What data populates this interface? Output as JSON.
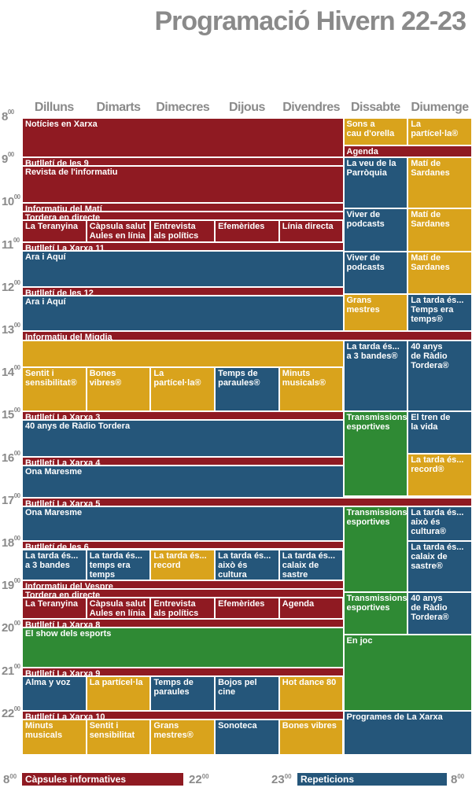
{
  "title": "Programació Hivern 22-23",
  "days": [
    "Dilluns",
    "Dimarts",
    "Dimecres",
    "Dijous",
    "Divendres",
    "Dissabte",
    "Diumenge"
  ],
  "hours": [
    "8",
    "9",
    "10",
    "11",
    "12",
    "13",
    "14",
    "15",
    "16",
    "17",
    "18",
    "19",
    "20",
    "21",
    "22"
  ],
  "hour_suffix": "00",
  "colors": {
    "red": "#8f1a22",
    "blue": "#25567a",
    "yellow": "#d9a31c",
    "green": "#2f8a34"
  },
  "blocks": [
    {
      "text": "Notícies en Xarxa",
      "c": "red",
      "d0": 0,
      "d1": 5,
      "s": 0,
      "e": 0.92
    },
    {
      "text": "Sons a\ncau d'orella",
      "c": "yel",
      "d0": 5,
      "d1": 6,
      "s": 0,
      "e": 0.65
    },
    {
      "text": "La partícel·la®",
      "c": "yel",
      "d0": 6,
      "d1": 7,
      "s": 0,
      "e": 0.65
    },
    {
      "text": "Agenda",
      "c": "red",
      "d0": 5,
      "d1": 7,
      "s": 0.65,
      "e": 0.92
    },
    {
      "text": "Butlletí de les 9",
      "c": "red",
      "d0": 0,
      "d1": 5,
      "s": 0.92,
      "e": 1.12
    },
    {
      "text": "Revista de l'informatiu",
      "c": "red",
      "d0": 0,
      "d1": 5,
      "s": 1.12,
      "e": 2.0
    },
    {
      "text": "La veu de la\nParròquia",
      "c": "blue",
      "d0": 5,
      "d1": 6,
      "s": 0.92,
      "e": 2.13
    },
    {
      "text": "Matí de\nSardanes",
      "c": "yel",
      "d0": 6,
      "d1": 7,
      "s": 0.92,
      "e": 2.13
    },
    {
      "text": "Informatiu del Matí",
      "c": "red",
      "d0": 0,
      "d1": 5,
      "s": 2.0,
      "e": 2.2
    },
    {
      "text": "Tordera en directe",
      "c": "red",
      "d0": 0,
      "d1": 5,
      "s": 2.2,
      "e": 2.4
    },
    {
      "text": "La Teranyina",
      "c": "red",
      "d0": 0,
      "d1": 1,
      "s": 2.4,
      "e": 2.92
    },
    {
      "text": "Càpsula salut\nAules en línia",
      "c": "red",
      "d0": 1,
      "d1": 2,
      "s": 2.4,
      "e": 2.92
    },
    {
      "text": "Entrevista\nals polítics",
      "c": "red",
      "d0": 2,
      "d1": 3,
      "s": 2.4,
      "e": 2.92
    },
    {
      "text": "Efemèrides",
      "c": "red",
      "d0": 3,
      "d1": 4,
      "s": 2.4,
      "e": 2.92
    },
    {
      "text": "Línia directa",
      "c": "red",
      "d0": 4,
      "d1": 5,
      "s": 2.4,
      "e": 2.92
    },
    {
      "text": "Viver de\npodcasts",
      "c": "blue",
      "d0": 5,
      "d1": 6,
      "s": 2.13,
      "e": 3.13
    },
    {
      "text": "Matí de\nSardanes",
      "c": "yel",
      "d0": 6,
      "d1": 7,
      "s": 2.13,
      "e": 3.13
    },
    {
      "text": "Butlletí La Xarxa 11",
      "c": "red",
      "d0": 0,
      "d1": 5,
      "s": 2.92,
      "e": 3.12
    },
    {
      "text": "Ara i Aquí",
      "c": "blue",
      "d0": 0,
      "d1": 5,
      "s": 3.12,
      "e": 3.97
    },
    {
      "text": "Viver de\npodcasts",
      "c": "blue",
      "d0": 5,
      "d1": 6,
      "s": 3.13,
      "e": 4.13
    },
    {
      "text": "Matí de\nSardanes",
      "c": "yel",
      "d0": 6,
      "d1": 7,
      "s": 3.13,
      "e": 4.13
    },
    {
      "text": "Butlletí de les 12",
      "c": "red",
      "d0": 0,
      "d1": 5,
      "s": 3.97,
      "e": 4.17
    },
    {
      "text": "Ara i Aquí",
      "c": "blue",
      "d0": 0,
      "d1": 5,
      "s": 4.17,
      "e": 5.0
    },
    {
      "text": "Grans\nmestres",
      "c": "yel",
      "d0": 5,
      "d1": 6,
      "s": 4.13,
      "e": 5.0
    },
    {
      "text": "La tarda és...\nTemps era\ntemps®",
      "c": "blue",
      "d0": 6,
      "d1": 7,
      "s": 4.13,
      "e": 5.0
    },
    {
      "text": "Informatiu del Migdia",
      "c": "red",
      "d0": 0,
      "d1": 7,
      "s": 5.0,
      "e": 5.22
    },
    {
      "text": "",
      "c": "yel",
      "d0": 0,
      "d1": 5,
      "s": 5.22,
      "e": 5.85
    },
    {
      "text": "Sentit i\nsensibilitat®",
      "c": "yel",
      "d0": 0,
      "d1": 1,
      "s": 5.85,
      "e": 6.88
    },
    {
      "text": "Bones vibres®",
      "c": "yel",
      "d0": 1,
      "d1": 2,
      "s": 5.85,
      "e": 6.88
    },
    {
      "text": "La partícel·la®",
      "c": "yel",
      "d0": 2,
      "d1": 3,
      "s": 5.85,
      "e": 6.88
    },
    {
      "text": "Temps de\nparaules®",
      "c": "blue",
      "d0": 3,
      "d1": 4,
      "s": 5.85,
      "e": 6.88
    },
    {
      "text": "Minuts\nmusicals®",
      "c": "yel",
      "d0": 4,
      "d1": 5,
      "s": 5.85,
      "e": 6.88
    },
    {
      "text": "La tarda és...\na 3 bandes®",
      "c": "blue",
      "d0": 5,
      "d1": 6,
      "s": 5.22,
      "e": 6.88
    },
    {
      "text": "40 anys\nde Ràdio\nTordera®",
      "c": "blue",
      "d0": 6,
      "d1": 7,
      "s": 5.22,
      "e": 6.88
    },
    {
      "text": "Butlletí La Xarxa 3",
      "c": "red",
      "d0": 0,
      "d1": 5,
      "s": 6.88,
      "e": 7.08
    },
    {
      "text": "40 anys de Ràdio Tordera",
      "c": "blue",
      "d0": 0,
      "d1": 5,
      "s": 7.08,
      "e": 7.95
    },
    {
      "text": "Transmissions\nesportives",
      "c": "grn",
      "d0": 5,
      "d1": 6,
      "s": 6.88,
      "e": 8.88
    },
    {
      "text": "El tren de\nla vida",
      "c": "blue",
      "d0": 6,
      "d1": 7,
      "s": 6.88,
      "e": 7.88
    },
    {
      "text": "La tarda és...\nrecord®",
      "c": "yel",
      "d0": 6,
      "d1": 7,
      "s": 7.88,
      "e": 8.88
    },
    {
      "text": "Butlletí La Xarxa 4",
      "c": "red",
      "d0": 0,
      "d1": 5,
      "s": 7.95,
      "e": 8.15
    },
    {
      "text": "Ona Maresme",
      "c": "blue",
      "d0": 0,
      "d1": 5,
      "s": 8.15,
      "e": 8.92
    },
    {
      "text": "Butlletí La Xarxa 5",
      "c": "red",
      "d0": 0,
      "d1": 7,
      "s": 8.92,
      "e": 9.12
    },
    {
      "text": "Ona Maresme",
      "c": "blue",
      "d0": 0,
      "d1": 5,
      "s": 9.12,
      "e": 9.92
    },
    {
      "text": "Transmissions\nesportives",
      "c": "grn",
      "d0": 5,
      "d1": 6,
      "s": 9.12,
      "e": 11.12
    },
    {
      "text": "La tarda és...\naixò és cultura®",
      "c": "blue",
      "d0": 6,
      "d1": 7,
      "s": 9.12,
      "e": 9.92
    },
    {
      "text": "Butlletí de les 6",
      "c": "red",
      "d0": 0,
      "d1": 5,
      "s": 9.92,
      "e": 10.12
    },
    {
      "text": "La tarda és...\na 3 bandes",
      "c": "blue",
      "d0": 0,
      "d1": 1,
      "s": 10.12,
      "e": 10.85
    },
    {
      "text": "La tarda és...\ntemps era\ntemps",
      "c": "blue",
      "d0": 1,
      "d1": 2,
      "s": 10.12,
      "e": 10.85
    },
    {
      "text": "La tarda és...\nrecord",
      "c": "yel",
      "d0": 2,
      "d1": 3,
      "s": 10.12,
      "e": 10.85
    },
    {
      "text": "La tarda és...\naixò és cultura",
      "c": "blue",
      "d0": 3,
      "d1": 4,
      "s": 10.12,
      "e": 10.85
    },
    {
      "text": "La tarda és...\ncalaix de\nsastre",
      "c": "blue",
      "d0": 4,
      "d1": 5,
      "s": 10.12,
      "e": 10.85
    },
    {
      "text": "La tarda és...\ncalaix de\nsastre®",
      "c": "blue",
      "d0": 6,
      "d1": 7,
      "s": 9.92,
      "e": 11.12
    },
    {
      "text": "Informatiu del Vespre",
      "c": "red",
      "d0": 0,
      "d1": 5,
      "s": 10.85,
      "e": 11.05
    },
    {
      "text": "Tordera en directe",
      "c": "red",
      "d0": 0,
      "d1": 5,
      "s": 11.05,
      "e": 11.25
    },
    {
      "text": "La Teranyina",
      "c": "red",
      "d0": 0,
      "d1": 1,
      "s": 11.25,
      "e": 11.75
    },
    {
      "text": "Càpsula salut\nAules en línia",
      "c": "red",
      "d0": 1,
      "d1": 2,
      "s": 11.25,
      "e": 11.75
    },
    {
      "text": "Entrevista\nals polítics",
      "c": "red",
      "d0": 2,
      "d1": 3,
      "s": 11.25,
      "e": 11.75
    },
    {
      "text": "Efemèrides",
      "c": "red",
      "d0": 3,
      "d1": 4,
      "s": 11.25,
      "e": 11.75
    },
    {
      "text": "Agenda",
      "c": "red",
      "d0": 4,
      "d1": 5,
      "s": 11.25,
      "e": 11.75
    },
    {
      "text": "Transmissions\nesportives",
      "c": "grn",
      "d0": 5,
      "d1": 6,
      "s": 11.12,
      "e": 12.12
    },
    {
      "text": "40 anys\nde Ràdio\nTordera®",
      "c": "blue",
      "d0": 6,
      "d1": 7,
      "s": 11.12,
      "e": 12.12
    },
    {
      "text": "Butlletí La Xarxa 8",
      "c": "red",
      "d0": 0,
      "d1": 5,
      "s": 11.75,
      "e": 11.95
    },
    {
      "text": "El show dels esports",
      "c": "grn",
      "d0": 0,
      "d1": 5,
      "s": 11.95,
      "e": 12.9
    },
    {
      "text": "En joc",
      "c": "grn",
      "d0": 5,
      "d1": 7,
      "s": 12.12,
      "e": 13.92
    },
    {
      "text": "Butlletí La Xarxa 9",
      "c": "red",
      "d0": 0,
      "d1": 5,
      "s": 12.9,
      "e": 13.1
    },
    {
      "text": "Alma y voz",
      "c": "blue",
      "d0": 0,
      "d1": 1,
      "s": 13.1,
      "e": 13.92
    },
    {
      "text": "La partícel·la",
      "c": "yel",
      "d0": 1,
      "d1": 2,
      "s": 13.1,
      "e": 13.92
    },
    {
      "text": "Temps de\nparaules",
      "c": "blue",
      "d0": 2,
      "d1": 3,
      "s": 13.1,
      "e": 13.92
    },
    {
      "text": "Bojos pel cine",
      "c": "blue",
      "d0": 3,
      "d1": 4,
      "s": 13.1,
      "e": 13.92
    },
    {
      "text": "Hot dance 80",
      "c": "yel",
      "d0": 4,
      "d1": 5,
      "s": 13.1,
      "e": 13.92
    },
    {
      "text": "Butlletí La Xarxa 10",
      "c": "red",
      "d0": 0,
      "d1": 5,
      "s": 13.92,
      "e": 14.12
    },
    {
      "text": "Programes de La Xarxa",
      "c": "blue",
      "d0": 5,
      "d1": 7,
      "s": 13.92,
      "e": 14.95
    },
    {
      "text": "Minuts\nmusicals",
      "c": "yel",
      "d0": 0,
      "d1": 1,
      "s": 14.12,
      "e": 14.95
    },
    {
      "text": "Sentit i\nsensibilitat",
      "c": "yel",
      "d0": 1,
      "d1": 2,
      "s": 14.12,
      "e": 14.95
    },
    {
      "text": "Grans\nmestres®",
      "c": "yel",
      "d0": 2,
      "d1": 3,
      "s": 14.12,
      "e": 14.95
    },
    {
      "text": "Sonoteca",
      "c": "blue",
      "d0": 3,
      "d1": 4,
      "s": 14.12,
      "e": 14.95
    },
    {
      "text": "Bones vibres",
      "c": "yel",
      "d0": 4,
      "d1": 5,
      "s": 14.12,
      "e": 14.95
    }
  ],
  "legend": {
    "red_label": "Càpsules informatives",
    "red_start": "8",
    "red_end": "22",
    "blue_label": "Repeticions",
    "blue_start": "23",
    "blue_end": "8"
  }
}
